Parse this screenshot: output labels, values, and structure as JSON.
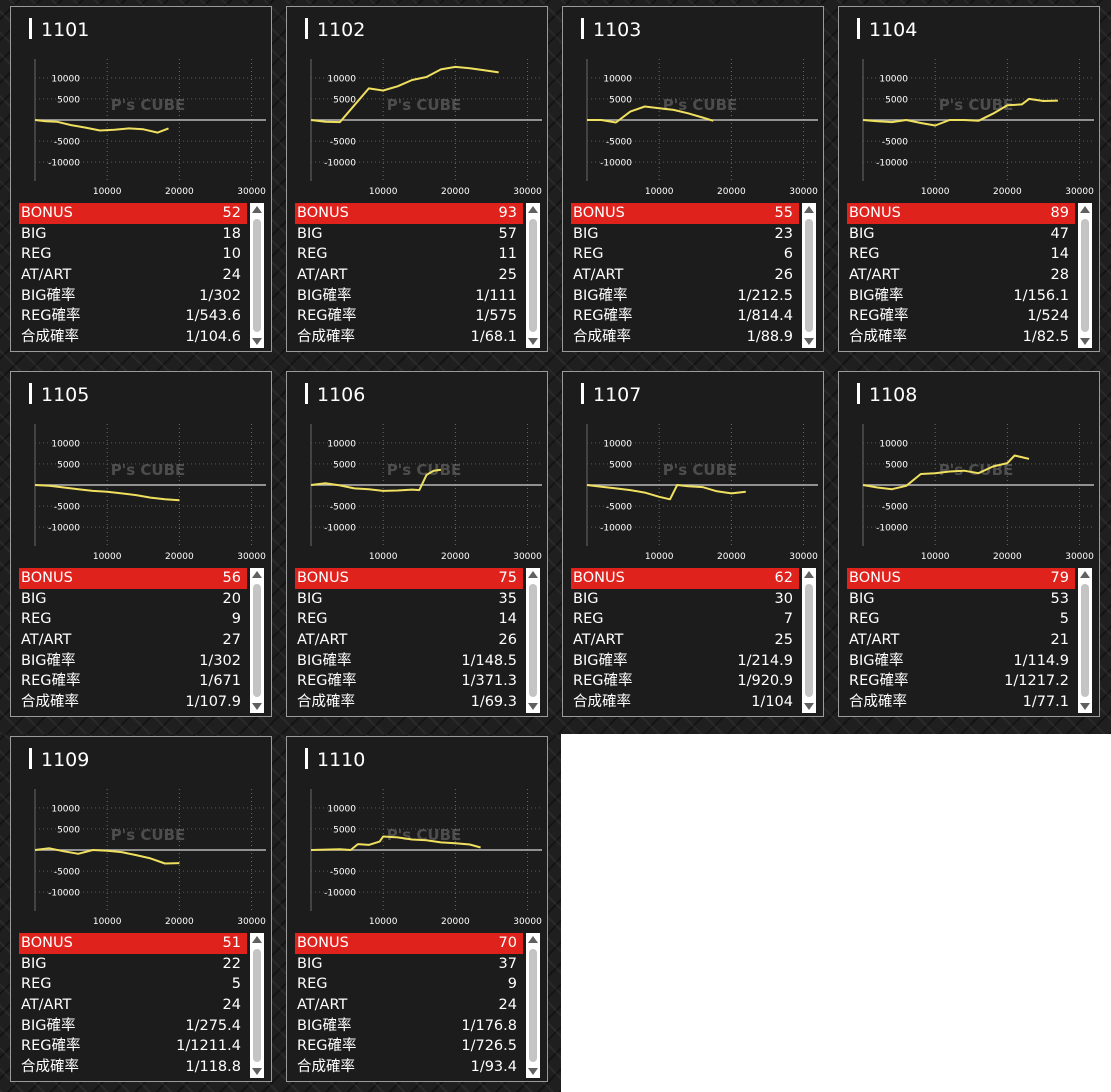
{
  "colors": {
    "bonus_bar": "#e0221d",
    "graph_line": "#f0e060",
    "panel": "#1c1c1c"
  },
  "watermark": "P's CUBE",
  "stat_labels": [
    "BONUS",
    "BIG",
    "REG",
    "AT/ART",
    "BIG確率",
    "REG確率",
    "合成確率"
  ],
  "chart_axes": {
    "x_ticks": [
      10000,
      20000,
      30000
    ],
    "y_ticks": [
      10000,
      5000,
      -5000,
      -10000
    ],
    "x_tick_labels": [
      "10000",
      "20000",
      "30000"
    ],
    "y_tick_labels": [
      "10000",
      "5000",
      "-5000",
      "-10000"
    ],
    "xlim": [
      0,
      32000
    ],
    "ylim": [
      -14000,
      14000
    ]
  },
  "machines": [
    {
      "id": "1101",
      "stats": [
        "52",
        "18",
        "10",
        "24",
        "1/302",
        "1/543.6",
        "1/104.6"
      ],
      "graph": [
        [
          0,
          0
        ],
        [
          1500,
          -300
        ],
        [
          3000,
          -400
        ],
        [
          5000,
          -1200
        ],
        [
          7000,
          -1800
        ],
        [
          9000,
          -2500
        ],
        [
          11000,
          -2300
        ],
        [
          13000,
          -2000
        ],
        [
          15000,
          -2200
        ],
        [
          17000,
          -3000
        ],
        [
          18500,
          -2000
        ]
      ]
    },
    {
      "id": "1102",
      "stats": [
        "93",
        "57",
        "11",
        "25",
        "1/111",
        "1/575",
        "1/68.1"
      ],
      "graph": [
        [
          0,
          0
        ],
        [
          2000,
          -400
        ],
        [
          4000,
          -500
        ],
        [
          6000,
          3500
        ],
        [
          8000,
          7500
        ],
        [
          10000,
          7000
        ],
        [
          12000,
          8000
        ],
        [
          14000,
          9500
        ],
        [
          16000,
          10200
        ],
        [
          18000,
          12000
        ],
        [
          20000,
          12600
        ],
        [
          22000,
          12300
        ],
        [
          24000,
          11800
        ],
        [
          26000,
          11300
        ]
      ]
    },
    {
      "id": "1103",
      "stats": [
        "55",
        "23",
        "6",
        "26",
        "1/212.5",
        "1/814.4",
        "1/88.9"
      ],
      "graph": [
        [
          0,
          0
        ],
        [
          2000,
          0
        ],
        [
          4000,
          -600
        ],
        [
          6000,
          2000
        ],
        [
          8000,
          3200
        ],
        [
          10000,
          2800
        ],
        [
          12000,
          2400
        ],
        [
          14000,
          1600
        ],
        [
          16000,
          600
        ],
        [
          17500,
          -200
        ]
      ]
    },
    {
      "id": "1104",
      "stats": [
        "89",
        "47",
        "14",
        "28",
        "1/156.1",
        "1/524",
        "1/82.5"
      ],
      "graph": [
        [
          0,
          0
        ],
        [
          2000,
          -300
        ],
        [
          4000,
          -500
        ],
        [
          6000,
          0
        ],
        [
          8000,
          -700
        ],
        [
          10000,
          -1300
        ],
        [
          12000,
          0
        ],
        [
          14000,
          0
        ],
        [
          16000,
          -200
        ],
        [
          18000,
          1500
        ],
        [
          20000,
          3500
        ],
        [
          22000,
          3700
        ],
        [
          23000,
          5000
        ],
        [
          25000,
          4500
        ],
        [
          27000,
          4600
        ]
      ]
    },
    {
      "id": "1105",
      "stats": [
        "56",
        "20",
        "9",
        "27",
        "1/302",
        "1/671",
        "1/107.9"
      ],
      "graph": [
        [
          0,
          0
        ],
        [
          2000,
          -200
        ],
        [
          4000,
          -600
        ],
        [
          6000,
          -1000
        ],
        [
          8000,
          -1400
        ],
        [
          10000,
          -1600
        ],
        [
          12000,
          -2000
        ],
        [
          14000,
          -2400
        ],
        [
          16000,
          -3000
        ],
        [
          18000,
          -3400
        ],
        [
          20000,
          -3600
        ]
      ]
    },
    {
      "id": "1106",
      "stats": [
        "75",
        "35",
        "14",
        "26",
        "1/148.5",
        "1/371.3",
        "1/69.3"
      ],
      "graph": [
        [
          0,
          0
        ],
        [
          2000,
          400
        ],
        [
          4000,
          -100
        ],
        [
          6000,
          -800
        ],
        [
          8000,
          -1000
        ],
        [
          10000,
          -1400
        ],
        [
          12000,
          -1300
        ],
        [
          14000,
          -1100
        ],
        [
          15000,
          -1200
        ],
        [
          16000,
          2400
        ],
        [
          17000,
          3400
        ],
        [
          18000,
          3600
        ]
      ]
    },
    {
      "id": "1107",
      "stats": [
        "62",
        "30",
        "7",
        "25",
        "1/214.9",
        "1/920.9",
        "1/104"
      ],
      "graph": [
        [
          0,
          0
        ],
        [
          2000,
          -400
        ],
        [
          4000,
          -800
        ],
        [
          6000,
          -1200
        ],
        [
          8000,
          -1800
        ],
        [
          10000,
          -2800
        ],
        [
          11500,
          -3400
        ],
        [
          12500,
          0
        ],
        [
          14000,
          -300
        ],
        [
          16000,
          -500
        ],
        [
          18000,
          -1500
        ],
        [
          20000,
          -2000
        ],
        [
          22000,
          -1600
        ]
      ]
    },
    {
      "id": "1108",
      "stats": [
        "79",
        "53",
        "5",
        "21",
        "1/114.9",
        "1/1217.2",
        "1/77.1"
      ],
      "graph": [
        [
          0,
          0
        ],
        [
          2000,
          -600
        ],
        [
          4000,
          -1000
        ],
        [
          6000,
          -200
        ],
        [
          8000,
          2600
        ],
        [
          10000,
          2800
        ],
        [
          12000,
          3200
        ],
        [
          14000,
          3400
        ],
        [
          16000,
          2800
        ],
        [
          18000,
          4400
        ],
        [
          20000,
          5200
        ],
        [
          21000,
          7000
        ],
        [
          23000,
          6200
        ]
      ]
    },
    {
      "id": "1109",
      "stats": [
        "51",
        "22",
        "5",
        "24",
        "1/275.4",
        "1/1211.4",
        "1/118.8"
      ],
      "graph": [
        [
          0,
          0
        ],
        [
          2000,
          400
        ],
        [
          4000,
          -300
        ],
        [
          6000,
          -900
        ],
        [
          8000,
          0
        ],
        [
          10000,
          -200
        ],
        [
          12000,
          -500
        ],
        [
          14000,
          -1200
        ],
        [
          16000,
          -2000
        ],
        [
          18000,
          -3200
        ],
        [
          20000,
          -3100
        ]
      ]
    },
    {
      "id": "1110",
      "stats": [
        "70",
        "37",
        "9",
        "24",
        "1/176.8",
        "1/726.5",
        "1/93.4"
      ],
      "graph": [
        [
          0,
          0
        ],
        [
          2000,
          100
        ],
        [
          4000,
          200
        ],
        [
          5500,
          0
        ],
        [
          6500,
          1400
        ],
        [
          8000,
          1200
        ],
        [
          9500,
          2000
        ],
        [
          10000,
          3200
        ],
        [
          12000,
          3000
        ],
        [
          14000,
          2500
        ],
        [
          16000,
          2300
        ],
        [
          18000,
          1800
        ],
        [
          20000,
          1600
        ],
        [
          22000,
          1300
        ],
        [
          23500,
          600
        ]
      ]
    }
  ]
}
